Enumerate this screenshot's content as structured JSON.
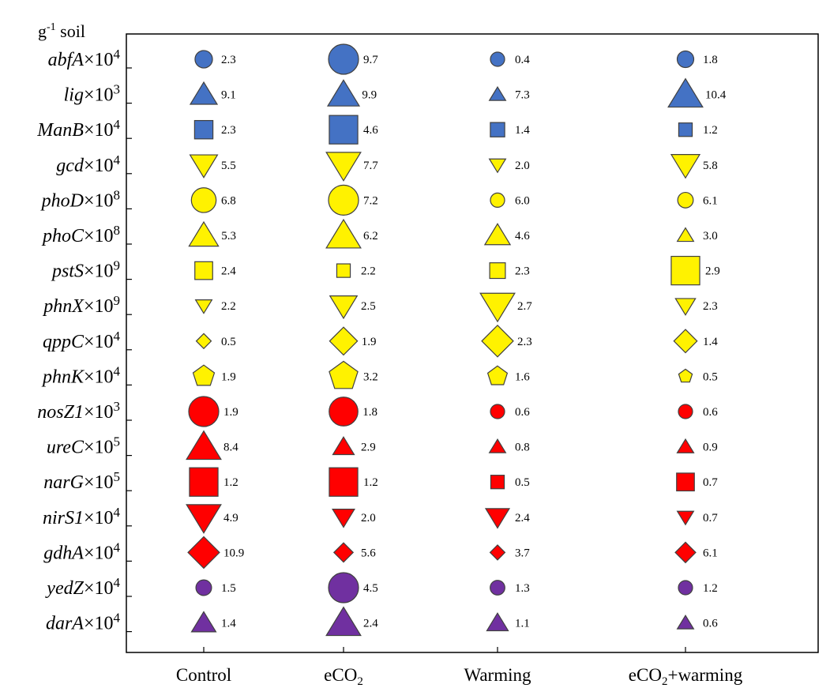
{
  "chart_data": {
    "type": "bubble-matrix",
    "unit_label_prefix": "g",
    "unit_label_sup": "-1",
    "unit_label_suffix": " soil",
    "categories": [
      {
        "main": "Control",
        "sub": ""
      },
      {
        "main": "eCO",
        "sub": "2"
      },
      {
        "main": "Warming",
        "sub": ""
      },
      {
        "main": "eCO",
        "sub": "2",
        "post": "+warming"
      }
    ],
    "genes": [
      {
        "name": "abfA",
        "mult": "×10",
        "exp": "4",
        "shape": "circle",
        "color": "blue",
        "values": [
          "2.3",
          "9.7",
          "0.4",
          "1.8"
        ]
      },
      {
        "name": "lig",
        "mult": "×10",
        "exp": "3",
        "shape": "triangle-up",
        "color": "blue",
        "values": [
          "9.1",
          "9.9",
          "7.3",
          "10.4"
        ]
      },
      {
        "name": "ManB",
        "mult": "×10",
        "exp": "4",
        "shape": "square",
        "color": "blue",
        "values": [
          "2.3",
          "4.6",
          "1.4",
          "1.2"
        ]
      },
      {
        "name": "gcd",
        "mult": "×10",
        "exp": "4",
        "shape": "triangle-down",
        "color": "yellow",
        "values": [
          "5.5",
          "7.7",
          "2.0",
          "5.8"
        ]
      },
      {
        "name": "phoD",
        "mult": "×10",
        "exp": "8",
        "shape": "circle",
        "color": "yellow",
        "values": [
          "6.8",
          "7.2",
          "6.0",
          "6.1"
        ]
      },
      {
        "name": "phoC",
        "mult": "×10",
        "exp": "8",
        "shape": "triangle-up",
        "color": "yellow",
        "values": [
          "5.3",
          "6.2",
          "4.6",
          "3.0"
        ]
      },
      {
        "name": "pstS",
        "mult": "×10",
        "exp": "9",
        "shape": "square",
        "color": "yellow",
        "values": [
          "2.4",
          "2.2",
          "2.3",
          "2.9"
        ]
      },
      {
        "name": "phnX",
        "mult": "×10",
        "exp": "9",
        "shape": "triangle-down",
        "color": "yellow",
        "values": [
          "2.2",
          "2.5",
          "2.7",
          "2.3"
        ]
      },
      {
        "name": "qppC",
        "mult": "×10",
        "exp": "4",
        "shape": "diamond",
        "color": "yellow",
        "values": [
          "0.5",
          "1.9",
          "2.3",
          "1.4"
        ]
      },
      {
        "name": "phnK",
        "mult": "×10",
        "exp": "4",
        "shape": "pentagon",
        "color": "yellow",
        "values": [
          "1.9",
          "3.2",
          "1.6",
          "0.5"
        ]
      },
      {
        "name": "nosZ1",
        "mult": "×10",
        "exp": "3",
        "shape": "circle",
        "color": "red",
        "values": [
          "1.9",
          "1.8",
          "0.6",
          "0.6"
        ]
      },
      {
        "name": "ureC",
        "mult": "×10",
        "exp": "5",
        "shape": "triangle-up",
        "color": "red",
        "values": [
          "8.4",
          "2.9",
          "0.8",
          "0.9"
        ]
      },
      {
        "name": "narG",
        "mult": "×10",
        "exp": "5",
        "shape": "square",
        "color": "red",
        "values": [
          "1.2",
          "1.2",
          "0.5",
          "0.7"
        ]
      },
      {
        "name": "nirS1",
        "mult": "×10",
        "exp": "4",
        "shape": "triangle-down",
        "color": "red",
        "values": [
          "4.9",
          "2.0",
          "2.4",
          "0.7"
        ]
      },
      {
        "name": "gdhA",
        "mult": "×10",
        "exp": "4",
        "shape": "diamond",
        "color": "red",
        "values": [
          "10.9",
          "5.6",
          "3.7",
          "6.1"
        ]
      },
      {
        "name": "yedZ",
        "mult": "×10",
        "exp": "4",
        "shape": "circle",
        "color": "purple",
        "values": [
          "1.5",
          "4.5",
          "1.3",
          "1.2"
        ]
      },
      {
        "name": "darA",
        "mult": "×10",
        "exp": "4",
        "shape": "triangle-up",
        "color": "purple",
        "values": [
          "1.4",
          "2.4",
          "1.1",
          "0.6"
        ]
      }
    ],
    "colors": {
      "blue": "#4472C4",
      "yellow": "#FFF200",
      "red": "#FF0000",
      "purple": "#7030A0",
      "stroke": "#404040"
    }
  }
}
